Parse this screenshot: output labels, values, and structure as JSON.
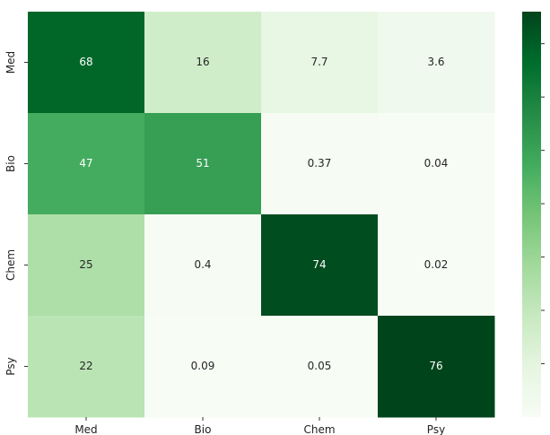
{
  "chart_data": {
    "type": "heatmap",
    "rows": [
      "Med",
      "Bio",
      "Chem",
      "Psy"
    ],
    "columns": [
      "Med",
      "Bio",
      "Chem",
      "Psy"
    ],
    "values": [
      [
        68,
        16,
        7.7,
        3.6
      ],
      [
        47,
        51,
        0.37,
        0.04
      ],
      [
        25,
        0.4,
        74,
        0.02
      ],
      [
        22,
        0.09,
        0.05,
        76
      ]
    ],
    "cell_labels": [
      [
        "68",
        "16",
        "7.7",
        "3.6"
      ],
      [
        "47",
        "51",
        "0.37",
        "0.04"
      ],
      [
        "25",
        "0.4",
        "74",
        "0.02"
      ],
      [
        "22",
        "0.09",
        "0.05",
        "76"
      ]
    ],
    "colormap": "Greens",
    "vmin": 0,
    "vmax": 76,
    "colorbar": {
      "shown": true,
      "tick_labels_visible": false
    }
  }
}
